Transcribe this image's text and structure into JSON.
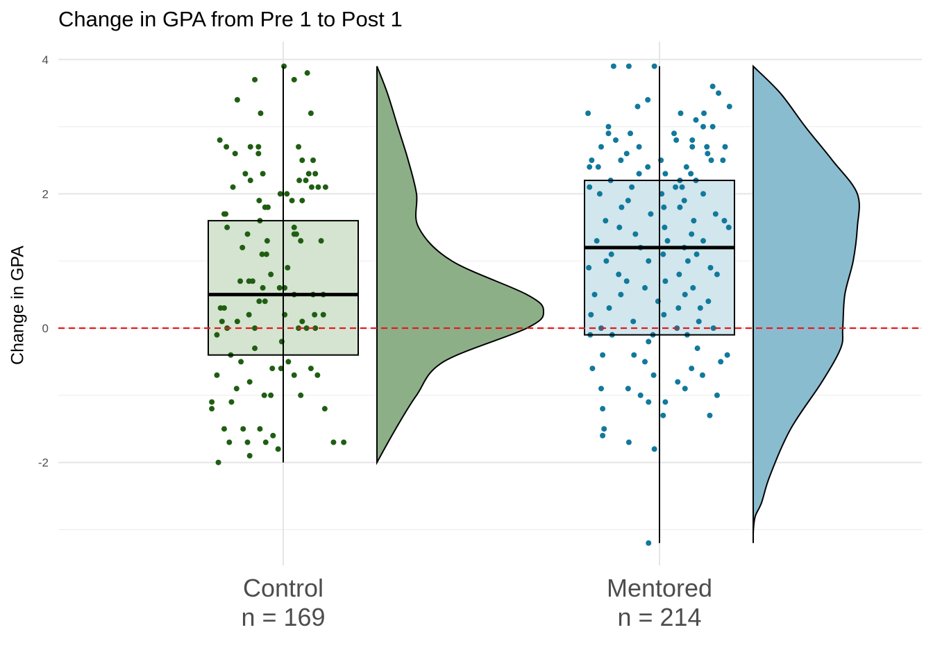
{
  "chart_data": {
    "type": "raincloud",
    "title": "Change in GPA from Pre 1 to Post 1",
    "xlabel": "",
    "ylabel": "Change in GPA",
    "ylim": [
      -3.5,
      4.2
    ],
    "y_ticks": [
      -2,
      0,
      2,
      4
    ],
    "grid": true,
    "reference_line": {
      "y": 0,
      "color": "#e41a1c",
      "style": "dashed"
    },
    "groups": [
      {
        "name": "Control",
        "n_label": "n = 169",
        "point_color": "#1f5e12",
        "box_fill": "#d4e4d0",
        "density_fill": "#8caf88",
        "box": {
          "q1": -0.4,
          "median": 0.5,
          "q3": 1.6,
          "whisker_low": -2.0,
          "whisker_high": 3.9
        },
        "density": [
          [
            -2.0,
            0.0
          ],
          [
            -1.5,
            0.09
          ],
          [
            -1.0,
            0.19
          ],
          [
            -0.5,
            0.32
          ],
          [
            0.0,
            0.72
          ],
          [
            0.25,
            0.8
          ],
          [
            0.5,
            0.72
          ],
          [
            1.0,
            0.36
          ],
          [
            1.5,
            0.2
          ],
          [
            2.0,
            0.19
          ],
          [
            2.5,
            0.15
          ],
          [
            3.0,
            0.1
          ],
          [
            3.5,
            0.05
          ],
          [
            3.9,
            0.0
          ]
        ],
        "points": [
          [
            3.9,
            0.01
          ],
          [
            3.7,
            -0.39
          ],
          [
            3.7,
            0.15
          ],
          [
            3.8,
            0.33
          ],
          [
            3.4,
            -0.63
          ],
          [
            3.2,
            -0.31
          ],
          [
            3.2,
            0.38
          ],
          [
            2.8,
            -0.87
          ],
          [
            2.7,
            -0.78
          ],
          [
            2.7,
            -0.45
          ],
          [
            2.7,
            -0.34
          ],
          [
            2.7,
            0.21
          ],
          [
            2.6,
            -0.66
          ],
          [
            2.6,
            -0.34
          ],
          [
            2.5,
            0.26
          ],
          [
            2.5,
            0.41
          ],
          [
            2.3,
            -0.52
          ],
          [
            2.3,
            -0.28
          ],
          [
            2.3,
            0.35
          ],
          [
            2.3,
            0.44
          ],
          [
            2.2,
            -0.45
          ],
          [
            2.2,
            0.22
          ],
          [
            2.2,
            0.31
          ],
          [
            2.1,
            -0.69
          ],
          [
            2.1,
            0.39
          ],
          [
            2.1,
            0.48
          ],
          [
            2.1,
            0.58
          ],
          [
            2.0,
            -0.04
          ],
          [
            2.0,
            0.05
          ],
          [
            1.9,
            -0.33
          ],
          [
            1.9,
            0.12
          ],
          [
            1.9,
            0.26
          ],
          [
            1.8,
            -0.25
          ],
          [
            1.8,
            -0.21
          ],
          [
            1.7,
            -0.81
          ],
          [
            1.7,
            -0.79
          ],
          [
            1.6,
            -0.32
          ],
          [
            1.5,
            -0.77
          ],
          [
            1.5,
            0.15
          ],
          [
            1.4,
            -0.49
          ],
          [
            1.4,
            0.15
          ],
          [
            1.4,
            0.18
          ],
          [
            1.3,
            -0.22
          ],
          [
            1.3,
            0.24
          ],
          [
            1.3,
            0.52
          ],
          [
            1.2,
            -0.56
          ],
          [
            1.1,
            -0.29
          ],
          [
            1.1,
            -0.23
          ],
          [
            0.9,
            0.06
          ],
          [
            0.8,
            -0.17
          ],
          [
            0.7,
            -0.59
          ],
          [
            0.7,
            -0.47
          ],
          [
            0.7,
            -0.42
          ],
          [
            0.6,
            -0.28
          ],
          [
            0.6,
            -0.05
          ],
          [
            0.6,
            0.02
          ],
          [
            0.5,
            0.15
          ],
          [
            0.5,
            0.41
          ],
          [
            0.5,
            0.55
          ],
          [
            0.4,
            -0.33
          ],
          [
            0.4,
            -0.25
          ],
          [
            0.3,
            -0.86
          ],
          [
            0.3,
            -0.81
          ],
          [
            0.2,
            -0.47
          ],
          [
            0.2,
            0.02
          ],
          [
            0.2,
            0.43
          ],
          [
            0.2,
            0.55
          ],
          [
            0.1,
            -0.84
          ],
          [
            0.1,
            -0.63
          ],
          [
            0.1,
            0.26
          ],
          [
            0.0,
            -0.77
          ],
          [
            0.0,
            -0.39
          ],
          [
            0.0,
            0.21
          ],
          [
            0.0,
            0.32
          ],
          [
            0.0,
            0.44
          ],
          [
            -0.1,
            -0.91
          ],
          [
            -0.2,
            -0.02
          ],
          [
            -0.3,
            -0.39
          ],
          [
            -0.4,
            -0.72
          ],
          [
            -0.5,
            -0.58
          ],
          [
            -0.5,
            0.07
          ],
          [
            -0.6,
            -0.15
          ],
          [
            -0.6,
            -0.03
          ],
          [
            -0.6,
            0.38
          ],
          [
            -0.7,
            -0.91
          ],
          [
            -0.7,
            0.15
          ],
          [
            -0.7,
            0.47
          ],
          [
            -0.8,
            -0.46
          ],
          [
            -0.9,
            -0.64
          ],
          [
            -1.0,
            -0.26
          ],
          [
            -1.0,
            -0.17
          ],
          [
            -1.0,
            0.24
          ],
          [
            -1.1,
            -0.98
          ],
          [
            -1.1,
            -0.71
          ],
          [
            -1.2,
            -0.98
          ],
          [
            -1.2,
            0.57
          ],
          [
            -1.5,
            -0.81
          ],
          [
            -1.5,
            -0.55
          ],
          [
            -1.5,
            -0.32
          ],
          [
            -1.6,
            -0.14
          ],
          [
            -1.7,
            -0.74
          ],
          [
            -1.7,
            -0.49
          ],
          [
            -1.7,
            -0.24
          ],
          [
            -1.7,
            0.69
          ],
          [
            -1.7,
            0.83
          ],
          [
            -1.8,
            -0.07
          ],
          [
            -1.9,
            -0.46
          ],
          [
            -2.0,
            -0.89
          ]
        ]
      },
      {
        "name": "Mentored",
        "n_label": "n = 214",
        "point_color": "#11799c",
        "box_fill": "#d1e6ed",
        "density_fill": "#8abcd0",
        "box": {
          "q1": -0.1,
          "median": 1.2,
          "q3": 2.2,
          "whisker_low": -3.2,
          "whisker_high": 3.9
        },
        "density": [
          [
            -3.2,
            0.0
          ],
          [
            -3.0,
            0.001
          ],
          [
            -2.8,
            0.01
          ],
          [
            -2.6,
            0.04
          ],
          [
            -2.2,
            0.08
          ],
          [
            -1.5,
            0.18
          ],
          [
            -0.8,
            0.33
          ],
          [
            -0.3,
            0.42
          ],
          [
            0.0,
            0.43
          ],
          [
            0.5,
            0.44
          ],
          [
            1.0,
            0.48
          ],
          [
            1.5,
            0.5
          ],
          [
            2.0,
            0.5
          ],
          [
            2.5,
            0.38
          ],
          [
            3.0,
            0.25
          ],
          [
            3.5,
            0.13
          ],
          [
            3.9,
            0.0
          ]
        ],
        "points": [
          [
            3.9,
            -0.63
          ],
          [
            3.9,
            -0.42
          ],
          [
            3.9,
            -0.07
          ],
          [
            3.6,
            0.73
          ],
          [
            3.5,
            0.81
          ],
          [
            3.4,
            -0.16
          ],
          [
            3.3,
            -0.3
          ],
          [
            3.3,
            0.96
          ],
          [
            3.2,
            -0.98
          ],
          [
            3.2,
            0.29
          ],
          [
            3.2,
            0.61
          ],
          [
            3.1,
            0.5
          ],
          [
            3.0,
            -0.7
          ],
          [
            3.0,
            0.6
          ],
          [
            3.0,
            0.73
          ],
          [
            2.9,
            -0.7
          ],
          [
            2.9,
            -0.4
          ],
          [
            2.9,
            0.2
          ],
          [
            2.8,
            -0.6
          ],
          [
            2.8,
            0.23
          ],
          [
            2.8,
            0.45
          ],
          [
            2.7,
            -0.8
          ],
          [
            2.7,
            -0.28
          ],
          [
            2.7,
            0.45
          ],
          [
            2.7,
            0.65
          ],
          [
            2.7,
            0.9
          ],
          [
            2.6,
            -0.45
          ],
          [
            2.6,
            0.66
          ],
          [
            2.5,
            -0.93
          ],
          [
            2.5,
            -0.53
          ],
          [
            2.5,
            0.02
          ],
          [
            2.5,
            0.71
          ],
          [
            2.5,
            0.87
          ],
          [
            2.4,
            -0.96
          ],
          [
            2.4,
            -0.84
          ],
          [
            2.4,
            -0.16
          ],
          [
            2.4,
            0.37
          ],
          [
            2.3,
            -0.28
          ],
          [
            2.3,
            0.08
          ],
          [
            2.3,
            0.43
          ],
          [
            2.2,
            -0.67
          ],
          [
            2.2,
            0.28
          ],
          [
            2.2,
            0.5
          ],
          [
            2.1,
            -0.96
          ],
          [
            2.1,
            -0.38
          ],
          [
            2.1,
            0.22
          ],
          [
            2.1,
            0.31
          ],
          [
            2.0,
            -0.82
          ],
          [
            2.0,
            0.03
          ],
          [
            2.0,
            0.6
          ],
          [
            1.9,
            -0.43
          ],
          [
            1.9,
            0.34
          ],
          [
            1.8,
            -0.52
          ],
          [
            1.8,
            0.06
          ],
          [
            1.8,
            0.28
          ],
          [
            1.7,
            -0.12
          ],
          [
            1.7,
            0.77
          ],
          [
            1.6,
            -0.74
          ],
          [
            1.6,
            0.47
          ],
          [
            1.6,
            0.89
          ],
          [
            1.5,
            -0.55
          ],
          [
            1.5,
            0.07
          ],
          [
            1.5,
            0.95
          ],
          [
            1.4,
            -0.33
          ],
          [
            1.4,
            0.44
          ],
          [
            1.3,
            -0.86
          ],
          [
            1.3,
            0.11
          ],
          [
            1.3,
            0.6
          ],
          [
            1.2,
            -0.26
          ],
          [
            1.2,
            0.34
          ],
          [
            1.1,
            -0.66
          ],
          [
            1.1,
            0.05
          ],
          [
            1.1,
            0.51
          ],
          [
            1.0,
            -0.73
          ],
          [
            1.0,
            -0.15
          ],
          [
            1.0,
            0.39
          ],
          [
            0.9,
            -0.97
          ],
          [
            0.9,
            0.7
          ],
          [
            0.8,
            -0.56
          ],
          [
            0.8,
            0.27
          ],
          [
            0.8,
            0.79
          ],
          [
            0.7,
            -0.45
          ],
          [
            0.7,
            0.08
          ],
          [
            0.6,
            -0.2
          ],
          [
            0.6,
            0.46
          ],
          [
            0.5,
            -0.89
          ],
          [
            0.5,
            -0.53
          ],
          [
            0.5,
            0.35
          ],
          [
            0.4,
            -0.02
          ],
          [
            0.4,
            0.67
          ],
          [
            0.3,
            -0.69
          ],
          [
            0.3,
            0.26
          ],
          [
            0.3,
            0.56
          ],
          [
            0.2,
            -0.94
          ],
          [
            0.2,
            0.06
          ],
          [
            0.1,
            -0.36
          ],
          [
            0.1,
            0.54
          ],
          [
            0.0,
            -0.8
          ],
          [
            0.0,
            0.24
          ],
          [
            0.0,
            0.74
          ],
          [
            -0.1,
            -0.95
          ],
          [
            -0.1,
            -0.65
          ],
          [
            -0.1,
            -0.09
          ],
          [
            -0.1,
            0.38
          ],
          [
            -0.2,
            -0.15
          ],
          [
            -0.3,
            0.52
          ],
          [
            -0.4,
            -0.78
          ],
          [
            -0.4,
            -0.35
          ],
          [
            -0.4,
            0.93
          ],
          [
            -0.5,
            -0.2
          ],
          [
            -0.5,
            0.84
          ],
          [
            -0.6,
            -0.92
          ],
          [
            -0.6,
            0.44
          ],
          [
            -0.7,
            -0.08
          ],
          [
            -0.7,
            0.59
          ],
          [
            -0.8,
            0.25
          ],
          [
            -0.9,
            -0.8
          ],
          [
            -0.9,
            -0.43
          ],
          [
            -0.9,
            0.35
          ],
          [
            -1.0,
            -0.26
          ],
          [
            -1.0,
            0.79
          ],
          [
            -1.1,
            -0.15
          ],
          [
            -1.1,
            0.08
          ],
          [
            -1.2,
            -0.78
          ],
          [
            -1.3,
            0.05
          ],
          [
            -1.3,
            0.69
          ],
          [
            -1.5,
            -0.76
          ],
          [
            -1.6,
            -0.78
          ],
          [
            -1.7,
            -0.42
          ],
          [
            -1.8,
            -0.07
          ],
          [
            -3.2,
            -0.15
          ]
        ]
      }
    ]
  }
}
